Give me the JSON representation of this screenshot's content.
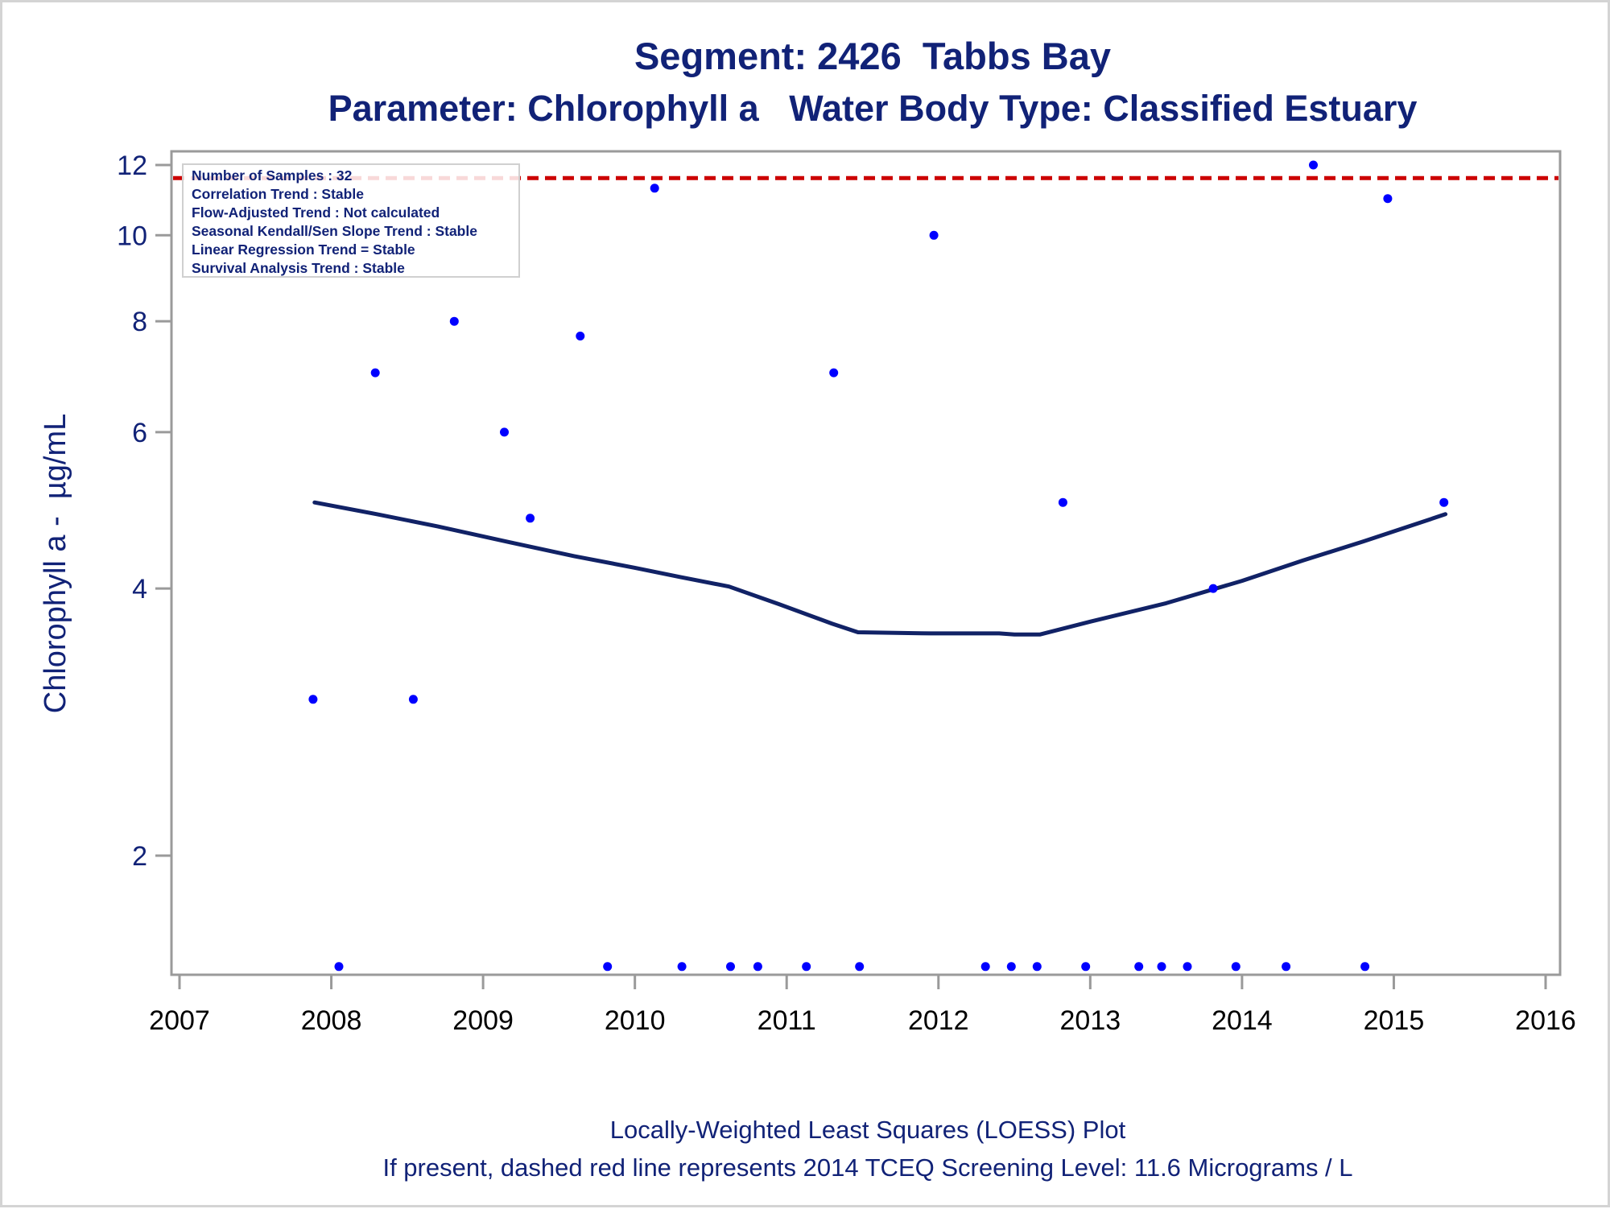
{
  "chart_data": {
    "type": "scatter",
    "title": "Segment: 2426  Tabbs Bay",
    "subtitle": "Parameter: Chlorophyll a   Water Body Type: Classified Estuary",
    "ylabel": "Chlorophyll a -  µg/mL",
    "xlabel": "",
    "x_scale": "linear",
    "y_scale": "log",
    "xlim": [
      2007,
      2016
    ],
    "ylim": [
      1.5,
      12.3
    ],
    "x_ticks": [
      2007,
      2008,
      2009,
      2010,
      2011,
      2012,
      2013,
      2014,
      2015,
      2016
    ],
    "y_ticks": [
      2,
      4,
      6,
      8,
      10,
      12
    ],
    "grid": false,
    "legend": "none",
    "stats_box": {
      "position": "top-left",
      "lines": [
        "Number of Samples : 32",
        "Correlation Trend : Stable",
        "Flow-Adjusted Trend : Not calculated",
        "Seasonal Kendall/Sen Slope Trend : Stable",
        "Linear Regression Trend = Stable",
        "Survival Analysis Trend : Stable"
      ]
    },
    "reference_line": {
      "y": 11.6,
      "style": "dashed",
      "color": "#cc0000"
    },
    "series": [
      {
        "kind": "points",
        "color": "#0000ff",
        "x": [
          2007.88,
          2008.05,
          2008.29,
          2008.54,
          2008.81,
          2009.14,
          2009.31,
          2009.64,
          2009.82,
          2010.13,
          2010.31,
          2010.63,
          2010.81,
          2011.13,
          2011.31,
          2011.48,
          2011.97,
          2012.31,
          2012.48,
          2012.65,
          2012.82,
          2012.97,
          2013.32,
          2013.47,
          2013.64,
          2013.81,
          2013.96,
          2014.29,
          2014.47,
          2014.81,
          2014.96,
          2015.33
        ],
        "y": [
          3.0,
          1.5,
          7.0,
          3.0,
          8.0,
          6.0,
          4.8,
          7.7,
          1.5,
          11.3,
          1.5,
          1.5,
          1.5,
          1.5,
          7.0,
          1.5,
          10.0,
          1.5,
          1.5,
          1.5,
          5.0,
          1.5,
          1.5,
          1.5,
          1.5,
          4.0,
          1.5,
          1.5,
          12.0,
          1.5,
          11.0,
          5.0
        ]
      },
      {
        "kind": "line",
        "name": "",
        "color": "#112266",
        "x": [
          2007.89,
          2008.3,
          2008.7,
          2009.2,
          2009.6,
          2010.0,
          2010.3,
          2010.62,
          2010.95,
          2011.3,
          2011.47,
          2011.95,
          2012.4,
          2012.5,
          2012.67,
          2013.0,
          2013.5,
          2014.0,
          2014.4,
          2014.8,
          2015.1,
          2015.34
        ],
        "y": [
          5.0,
          4.85,
          4.7,
          4.5,
          4.35,
          4.22,
          4.12,
          4.02,
          3.84,
          3.65,
          3.57,
          3.56,
          3.56,
          3.55,
          3.55,
          3.67,
          3.85,
          4.08,
          4.3,
          4.52,
          4.7,
          4.85
        ]
      }
    ]
  },
  "footnotes": {
    "line1": "Locally-Weighted Least Squares (LOESS) Plot",
    "line2": "If present, dashed red line represents 2014 TCEQ Screening Level: 11.6 Micrograms / L"
  }
}
